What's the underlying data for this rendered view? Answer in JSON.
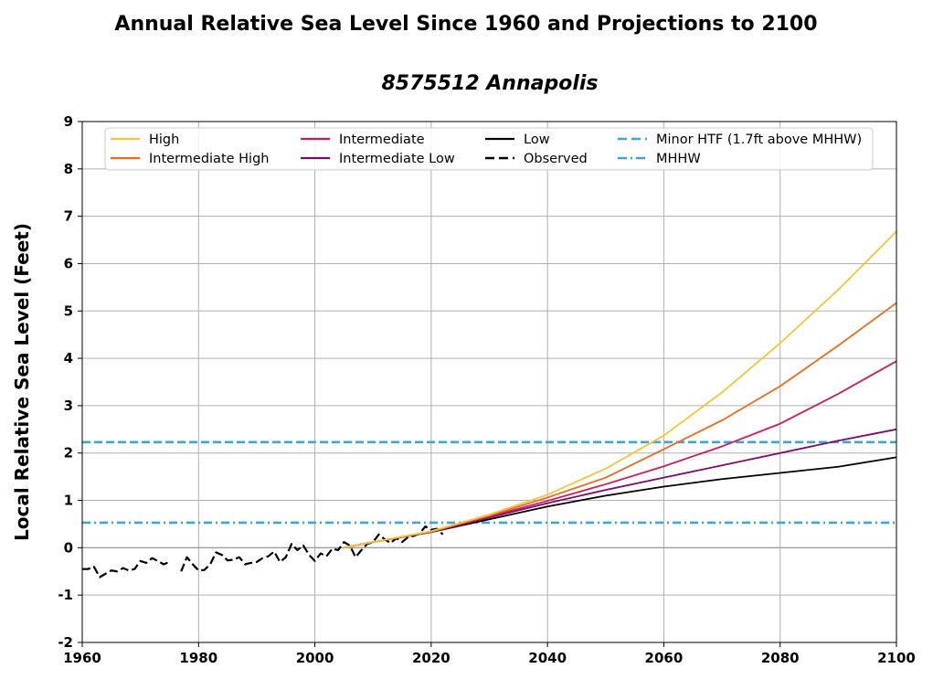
{
  "chart_data": {
    "type": "line",
    "title": "Annual Relative Sea Level Since 1960 and Projections to 2100",
    "subtitle": "8575512 Annapolis",
    "xlabel": "",
    "ylabel": "Local Relative Sea Level (Feet)",
    "xlim": [
      1960,
      2100
    ],
    "ylim": [
      -2,
      9
    ],
    "xticks": [
      1960,
      1980,
      2000,
      2020,
      2040,
      2060,
      2080,
      2100
    ],
    "xtick_labels": [
      "1960",
      "1980",
      "2000",
      "2020",
      "2040",
      "2060",
      "2080",
      "2100"
    ],
    "yticks": [
      -2,
      -1,
      0,
      1,
      2,
      3,
      4,
      5,
      6,
      7,
      8,
      9
    ],
    "ytick_labels": [
      "-2",
      "-1",
      "0",
      "1",
      "2",
      "3",
      "4",
      "5",
      "6",
      "7",
      "8",
      "9"
    ],
    "grid": true,
    "legend_position": "top",
    "legend_columns": 4,
    "series": [
      {
        "name": "High",
        "color": "#f2c53d",
        "style": "solid",
        "x": [
          2005,
          2010,
          2020,
          2030,
          2040,
          2050,
          2060,
          2070,
          2080,
          2090,
          2100
        ],
        "values": [
          0.0,
          0.12,
          0.35,
          0.7,
          1.12,
          1.67,
          2.37,
          3.28,
          4.32,
          5.45,
          6.68
        ]
      },
      {
        "name": "Intermediate High",
        "color": "#ec6a1e",
        "style": "solid",
        "x": [
          2005,
          2010,
          2020,
          2030,
          2040,
          2050,
          2060,
          2070,
          2080,
          2090,
          2100
        ],
        "values": [
          0.0,
          0.12,
          0.34,
          0.68,
          1.06,
          1.48,
          2.08,
          2.69,
          3.41,
          4.27,
          5.17
        ]
      },
      {
        "name": "Intermediate",
        "color": "#cc1c5a",
        "style": "solid",
        "x": [
          2005,
          2010,
          2020,
          2030,
          2040,
          2050,
          2060,
          2070,
          2080,
          2090,
          2100
        ],
        "values": [
          0.0,
          0.12,
          0.34,
          0.66,
          0.99,
          1.34,
          1.72,
          2.14,
          2.62,
          3.25,
          3.94
        ]
      },
      {
        "name": "Intermediate Low",
        "color": "#7a0a6c",
        "style": "solid",
        "x": [
          2005,
          2010,
          2020,
          2030,
          2040,
          2050,
          2060,
          2070,
          2080,
          2090,
          2100
        ],
        "values": [
          0.0,
          0.12,
          0.33,
          0.64,
          0.94,
          1.22,
          1.48,
          1.74,
          2.0,
          2.26,
          2.5
        ]
      },
      {
        "name": "Low",
        "color": "#000000",
        "style": "solid",
        "x": [
          2005,
          2010,
          2020,
          2030,
          2040,
          2050,
          2060,
          2070,
          2080,
          2090,
          2100
        ],
        "values": [
          0.0,
          0.12,
          0.33,
          0.6,
          0.87,
          1.1,
          1.29,
          1.45,
          1.58,
          1.71,
          1.91
        ]
      },
      {
        "name": "Observed",
        "color": "#000000",
        "style": "dashed",
        "x": [
          1960,
          1961,
          1962,
          1963,
          1964,
          1965,
          1966,
          1967,
          1968,
          1969,
          1970,
          1971,
          1972,
          1973,
          1974,
          1975,
          null,
          1977,
          1978,
          1979,
          1980,
          1981,
          1982,
          1983,
          1984,
          1985,
          1986,
          1987,
          1988,
          1989,
          1990,
          1991,
          1992,
          1993,
          1994,
          1995,
          1996,
          1997,
          1998,
          1999,
          2000,
          2001,
          2002,
          2003,
          2004,
          2005,
          2006,
          2007,
          2008,
          2009,
          2010,
          2011,
          2012,
          2013,
          2014,
          2015,
          2016,
          2017,
          2018,
          2019,
          2020,
          2021,
          2022
        ],
        "values": [
          -0.45,
          -0.45,
          -0.4,
          -0.62,
          -0.55,
          -0.48,
          -0.5,
          -0.43,
          -0.48,
          -0.45,
          -0.28,
          -0.32,
          -0.22,
          -0.28,
          -0.35,
          -0.3,
          null,
          -0.5,
          -0.2,
          -0.35,
          -0.48,
          -0.47,
          -0.35,
          -0.1,
          -0.15,
          -0.27,
          -0.25,
          -0.2,
          -0.35,
          -0.32,
          -0.3,
          -0.22,
          -0.18,
          -0.08,
          -0.3,
          -0.2,
          0.08,
          -0.05,
          0.05,
          -0.15,
          -0.28,
          -0.12,
          -0.18,
          -0.02,
          -0.05,
          0.12,
          0.05,
          -0.2,
          -0.05,
          0.08,
          0.12,
          0.28,
          0.18,
          0.1,
          0.2,
          0.12,
          0.22,
          0.25,
          0.3,
          0.45,
          0.38,
          0.4,
          0.28
        ]
      },
      {
        "name": "Minor HTF (1.7ft above MHHW)",
        "color": "#3fa6cd",
        "style": "dashed",
        "x": [
          1960,
          2100
        ],
        "values": [
          2.23,
          2.23
        ]
      },
      {
        "name": "MHHW",
        "color": "#3fa6cd",
        "style": "dashdot",
        "x": [
          1960,
          2100
        ],
        "values": [
          0.53,
          0.53
        ]
      }
    ],
    "reference_line": {
      "y": 0,
      "color": "#999999"
    }
  },
  "colors": {
    "grid": "#b0b0b0",
    "axis": "#000000",
    "legend_border": "#cccccc"
  }
}
